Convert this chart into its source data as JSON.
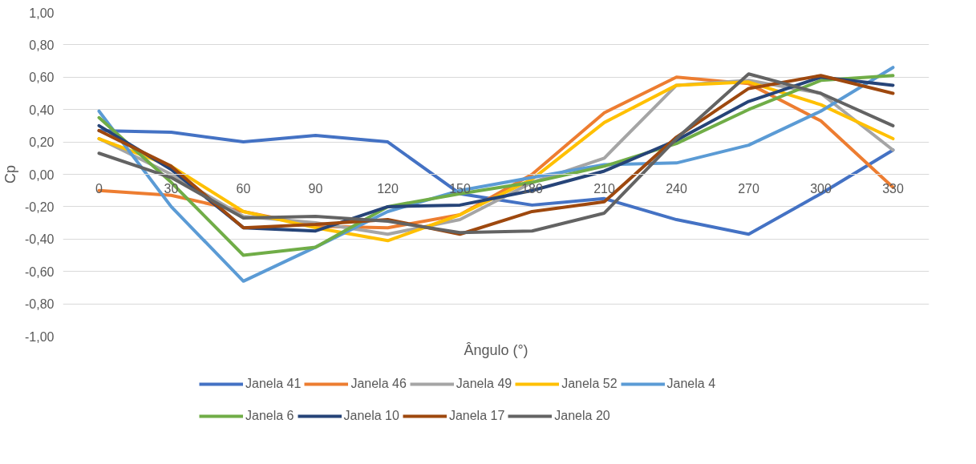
{
  "chart_data": {
    "type": "line",
    "xlabel": "Ângulo (°)",
    "ylabel": "Cp",
    "categories": [
      "0",
      "30",
      "60",
      "90",
      "120",
      "150",
      "180",
      "210",
      "240",
      "270",
      "300",
      "330"
    ],
    "ylim": [
      -1,
      1
    ],
    "yticks": [
      {
        "value": -1,
        "label": "-1,00"
      },
      {
        "value": -0.8,
        "label": "-0,80"
      },
      {
        "value": -0.6,
        "label": "-0,60"
      },
      {
        "value": -0.4,
        "label": "-0,40"
      },
      {
        "value": -0.2,
        "label": "-0,20"
      },
      {
        "value": 0,
        "label": "0,00"
      },
      {
        "value": 0.2,
        "label": "0,20"
      },
      {
        "value": 0.4,
        "label": "0,40"
      },
      {
        "value": 0.6,
        "label": "0,60"
      },
      {
        "value": 0.8,
        "label": "0,80"
      },
      {
        "value": 1,
        "label": "1,00"
      }
    ],
    "grid": "y",
    "legend": "bottom",
    "line_style": "solid",
    "series": [
      {
        "name": "Janela 41",
        "color": "#4472c4",
        "values": [
          0.27,
          0.26,
          0.2,
          0.24,
          0.2,
          -0.12,
          -0.19,
          -0.15,
          -0.28,
          -0.37,
          -0.12,
          0.15
        ]
      },
      {
        "name": "Janela 46",
        "color": "#ed7d31",
        "values": [
          -0.1,
          -0.13,
          -0.23,
          -0.32,
          -0.33,
          -0.25,
          0.0,
          0.38,
          0.6,
          0.56,
          0.33,
          -0.08
        ]
      },
      {
        "name": "Janela 49",
        "color": "#a5a5a5",
        "values": [
          0.22,
          0.0,
          -0.26,
          -0.3,
          -0.37,
          -0.28,
          -0.05,
          0.1,
          0.55,
          0.58,
          0.5,
          0.15
        ]
      },
      {
        "name": "Janela 52",
        "color": "#ffc000",
        "values": [
          0.22,
          0.05,
          -0.23,
          -0.33,
          -0.41,
          -0.25,
          -0.03,
          0.32,
          0.55,
          0.57,
          0.43,
          0.22
        ]
      },
      {
        "name": "Janela 4",
        "color": "#5b9bd5",
        "values": [
          0.39,
          -0.2,
          -0.66,
          -0.45,
          -0.23,
          -0.1,
          -0.02,
          0.06,
          0.07,
          0.18,
          0.39,
          0.66
        ]
      },
      {
        "name": "Janela 6",
        "color": "#70ad47",
        "values": [
          0.35,
          -0.05,
          -0.5,
          -0.45,
          -0.2,
          -0.12,
          -0.05,
          0.05,
          0.19,
          0.4,
          0.58,
          0.61
        ]
      },
      {
        "name": "Janela 10",
        "color": "#264478",
        "values": [
          0.3,
          0.03,
          -0.33,
          -0.35,
          -0.2,
          -0.19,
          -0.1,
          0.02,
          0.21,
          0.45,
          0.6,
          0.55
        ]
      },
      {
        "name": "Janela 17",
        "color": "#9e480e",
        "values": [
          0.27,
          0.05,
          -0.33,
          -0.31,
          -0.28,
          -0.37,
          -0.23,
          -0.17,
          0.23,
          0.53,
          0.61,
          0.5
        ]
      },
      {
        "name": "Janela 20",
        "color": "#636363",
        "values": [
          0.13,
          -0.02,
          -0.27,
          -0.26,
          -0.29,
          -0.36,
          -0.35,
          -0.24,
          0.22,
          0.62,
          0.5,
          0.3
        ]
      }
    ]
  }
}
